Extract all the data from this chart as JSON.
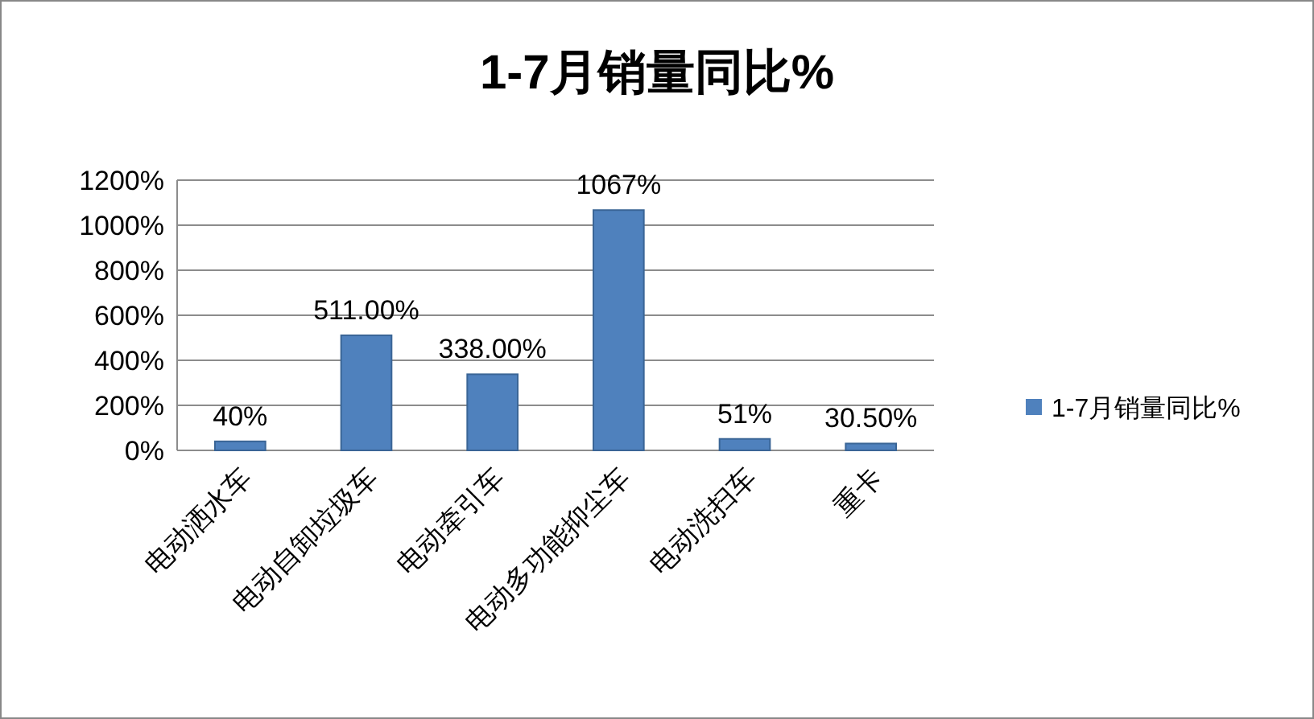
{
  "chart_data": {
    "type": "bar",
    "title": "1-7月销量同比%",
    "categories": [
      "电动洒水车",
      "电动自卸垃圾车",
      "电动牵引车",
      "电动多功能抑尘车",
      "电动洗扫车",
      "重卡"
    ],
    "series": [
      {
        "name": "1-7月销量同比%",
        "color": "#4f81bd",
        "values": [
          40,
          511,
          338,
          1067,
          51,
          30.5
        ],
        "value_labels": [
          "40%",
          "511.00%",
          "338.00%",
          "1067%",
          "51%",
          "30.50%"
        ]
      }
    ],
    "ylim": [
      0,
      1200
    ],
    "yticks": [
      {
        "value": 0,
        "label": "0%"
      },
      {
        "value": 200,
        "label": "200%"
      },
      {
        "value": 400,
        "label": "400%"
      },
      {
        "value": 600,
        "label": "600%"
      },
      {
        "value": 800,
        "label": "800%"
      },
      {
        "value": 1000,
        "label": "1000%"
      },
      {
        "value": 1200,
        "label": "1200%"
      }
    ],
    "grid": "y",
    "legend": "right"
  }
}
